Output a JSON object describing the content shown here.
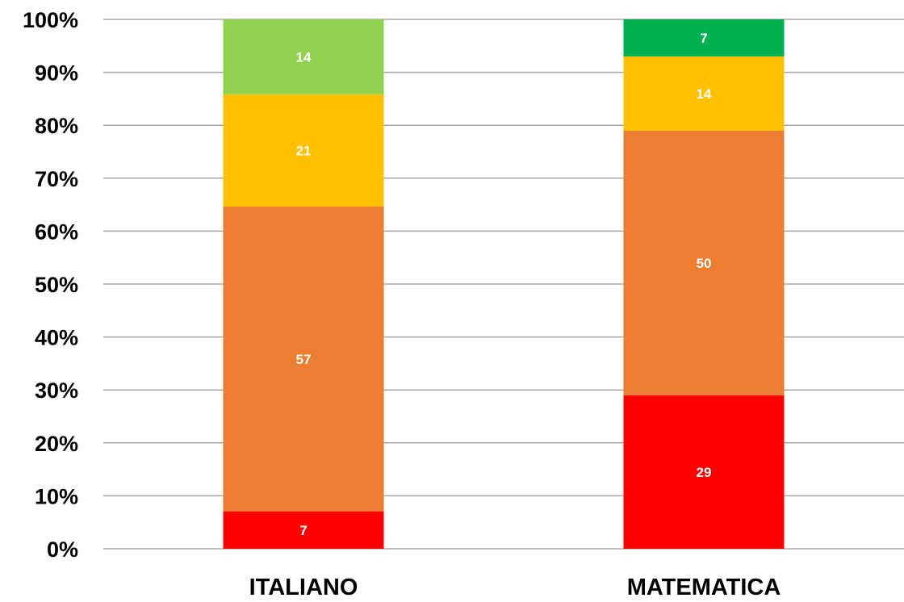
{
  "chart_data": {
    "type": "bar",
    "stacked": true,
    "percent_stacked": true,
    "categories": [
      "ITALIANO",
      "MATEMATICA"
    ],
    "series": [
      {
        "color": "#ff0000",
        "values": [
          7,
          29
        ]
      },
      {
        "color": "#ed7d31",
        "values": [
          57,
          50
        ]
      },
      {
        "color": "#ffc000",
        "values": [
          21,
          14
        ]
      },
      {
        "color": "#92d050",
        "values": [
          14,
          null
        ]
      },
      {
        "color": "#00b050",
        "values": [
          null,
          7
        ]
      }
    ],
    "y_ticks": [
      "0%",
      "10%",
      "20%",
      "30%",
      "40%",
      "50%",
      "60%",
      "70%",
      "80%",
      "90%",
      "100%"
    ],
    "ylim": [
      0,
      100
    ],
    "grid": true,
    "legend": "none",
    "title": "",
    "xlabel": "",
    "ylabel": ""
  }
}
